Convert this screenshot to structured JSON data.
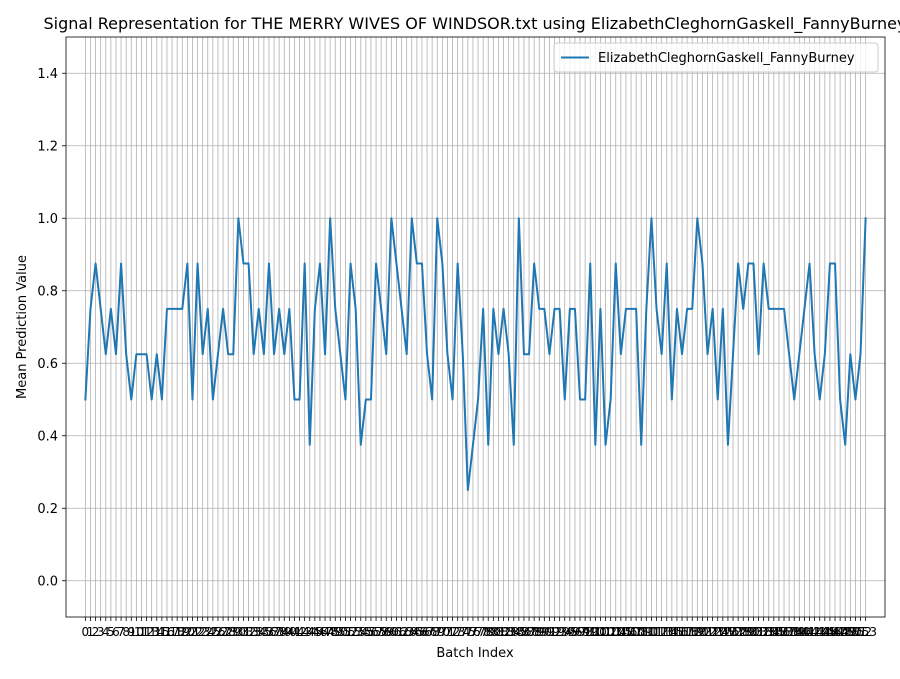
{
  "chart_data": {
    "type": "line",
    "title": "Signal Representation for THE MERRY WIVES OF WINDSOR.txt using ElizabethCleghornGaskell_FannyBurney",
    "xlabel": "Batch Index",
    "ylabel": "Mean Prediction Value",
    "ylim": [
      -0.1,
      1.5
    ],
    "xlim": [
      -3.8,
      156.8
    ],
    "yticks": [
      0.0,
      0.2,
      0.4,
      0.6,
      0.8,
      1.0,
      1.2,
      1.4
    ],
    "ytick_labels": [
      "0.0",
      "0.2",
      "0.4",
      "0.6",
      "0.8",
      "1.0",
      "1.2",
      "1.4"
    ],
    "grid": true,
    "legend_position": "top-right",
    "colors": {
      "series": "#1f77b4",
      "grid": "#b0b0b0",
      "axes": "#000000",
      "background": "#ffffff"
    },
    "x": [
      0,
      1,
      2,
      3,
      4,
      5,
      6,
      7,
      8,
      9,
      10,
      11,
      12,
      13,
      14,
      15,
      16,
      17,
      18,
      19,
      20,
      21,
      22,
      23,
      24,
      25,
      26,
      27,
      28,
      29,
      30,
      31,
      32,
      33,
      34,
      35,
      36,
      37,
      38,
      39,
      40,
      41,
      42,
      43,
      44,
      45,
      46,
      47,
      48,
      49,
      50,
      51,
      52,
      53,
      54,
      55,
      56,
      57,
      58,
      59,
      60,
      61,
      62,
      63,
      64,
      65,
      66,
      67,
      68,
      69,
      70,
      71,
      72,
      73,
      74,
      75,
      76,
      77,
      78,
      79,
      80,
      81,
      82,
      83,
      84,
      85,
      86,
      87,
      88,
      89,
      90,
      91,
      92,
      93,
      94,
      95,
      96,
      97,
      98,
      99,
      100,
      101,
      102,
      103,
      104,
      105,
      106,
      107,
      108,
      109,
      110,
      111,
      112,
      113,
      114,
      115,
      116,
      117,
      118,
      119,
      120,
      121,
      122,
      123,
      124,
      125,
      126,
      127,
      128,
      129,
      130,
      131,
      132,
      133,
      134,
      135,
      136,
      137,
      138,
      139,
      140,
      141,
      142,
      143,
      144,
      145,
      146,
      147,
      148,
      149,
      150,
      151,
      152,
      153
    ],
    "series": [
      {
        "name": "ElizabethCleghornGaskell_FannyBurney",
        "values": [
          0.5,
          0.75,
          0.875,
          0.75,
          0.625,
          0.75,
          0.625,
          0.875,
          0.625,
          0.5,
          0.625,
          0.625,
          0.625,
          0.5,
          0.625,
          0.5,
          0.75,
          0.75,
          0.75,
          0.75,
          0.875,
          0.5,
          0.875,
          0.625,
          0.75,
          0.5,
          0.625,
          0.75,
          0.625,
          0.625,
          1.0,
          0.875,
          0.875,
          0.625,
          0.75,
          0.625,
          0.875,
          0.625,
          0.75,
          0.625,
          0.75,
          0.5,
          0.5,
          0.875,
          0.375,
          0.75,
          0.875,
          0.625,
          1.0,
          0.75,
          0.625,
          0.5,
          0.875,
          0.75,
          0.375,
          0.5,
          0.5,
          0.875,
          0.75,
          0.625,
          1.0,
          0.875,
          0.75,
          0.625,
          1.0,
          0.875,
          0.875,
          0.625,
          0.5,
          1.0,
          0.875,
          0.625,
          0.5,
          0.875,
          0.625,
          0.25,
          0.375,
          0.5,
          0.75,
          0.375,
          0.75,
          0.625,
          0.75,
          0.625,
          0.375,
          1.0,
          0.625,
          0.625,
          0.875,
          0.75,
          0.75,
          0.625,
          0.75,
          0.75,
          0.5,
          0.75,
          0.75,
          0.5,
          0.5,
          0.875,
          0.375,
          0.75,
          0.375,
          0.5,
          0.875,
          0.625,
          0.75,
          0.75,
          0.75,
          0.375,
          0.75,
          1.0,
          0.75,
          0.625,
          0.875,
          0.5,
          0.75,
          0.625,
          0.75,
          0.75,
          1.0,
          0.875,
          0.625,
          0.75,
          0.5,
          0.75,
          0.375,
          0.625,
          0.875,
          0.75,
          0.875,
          0.875,
          0.625,
          0.875,
          0.75,
          0.75,
          0.75,
          0.75,
          0.625,
          0.5,
          0.625,
          0.75,
          0.875,
          0.625,
          0.5,
          0.625,
          0.875,
          0.875,
          0.5,
          0.375,
          0.625,
          0.5,
          0.625,
          1.0
        ]
      }
    ]
  }
}
